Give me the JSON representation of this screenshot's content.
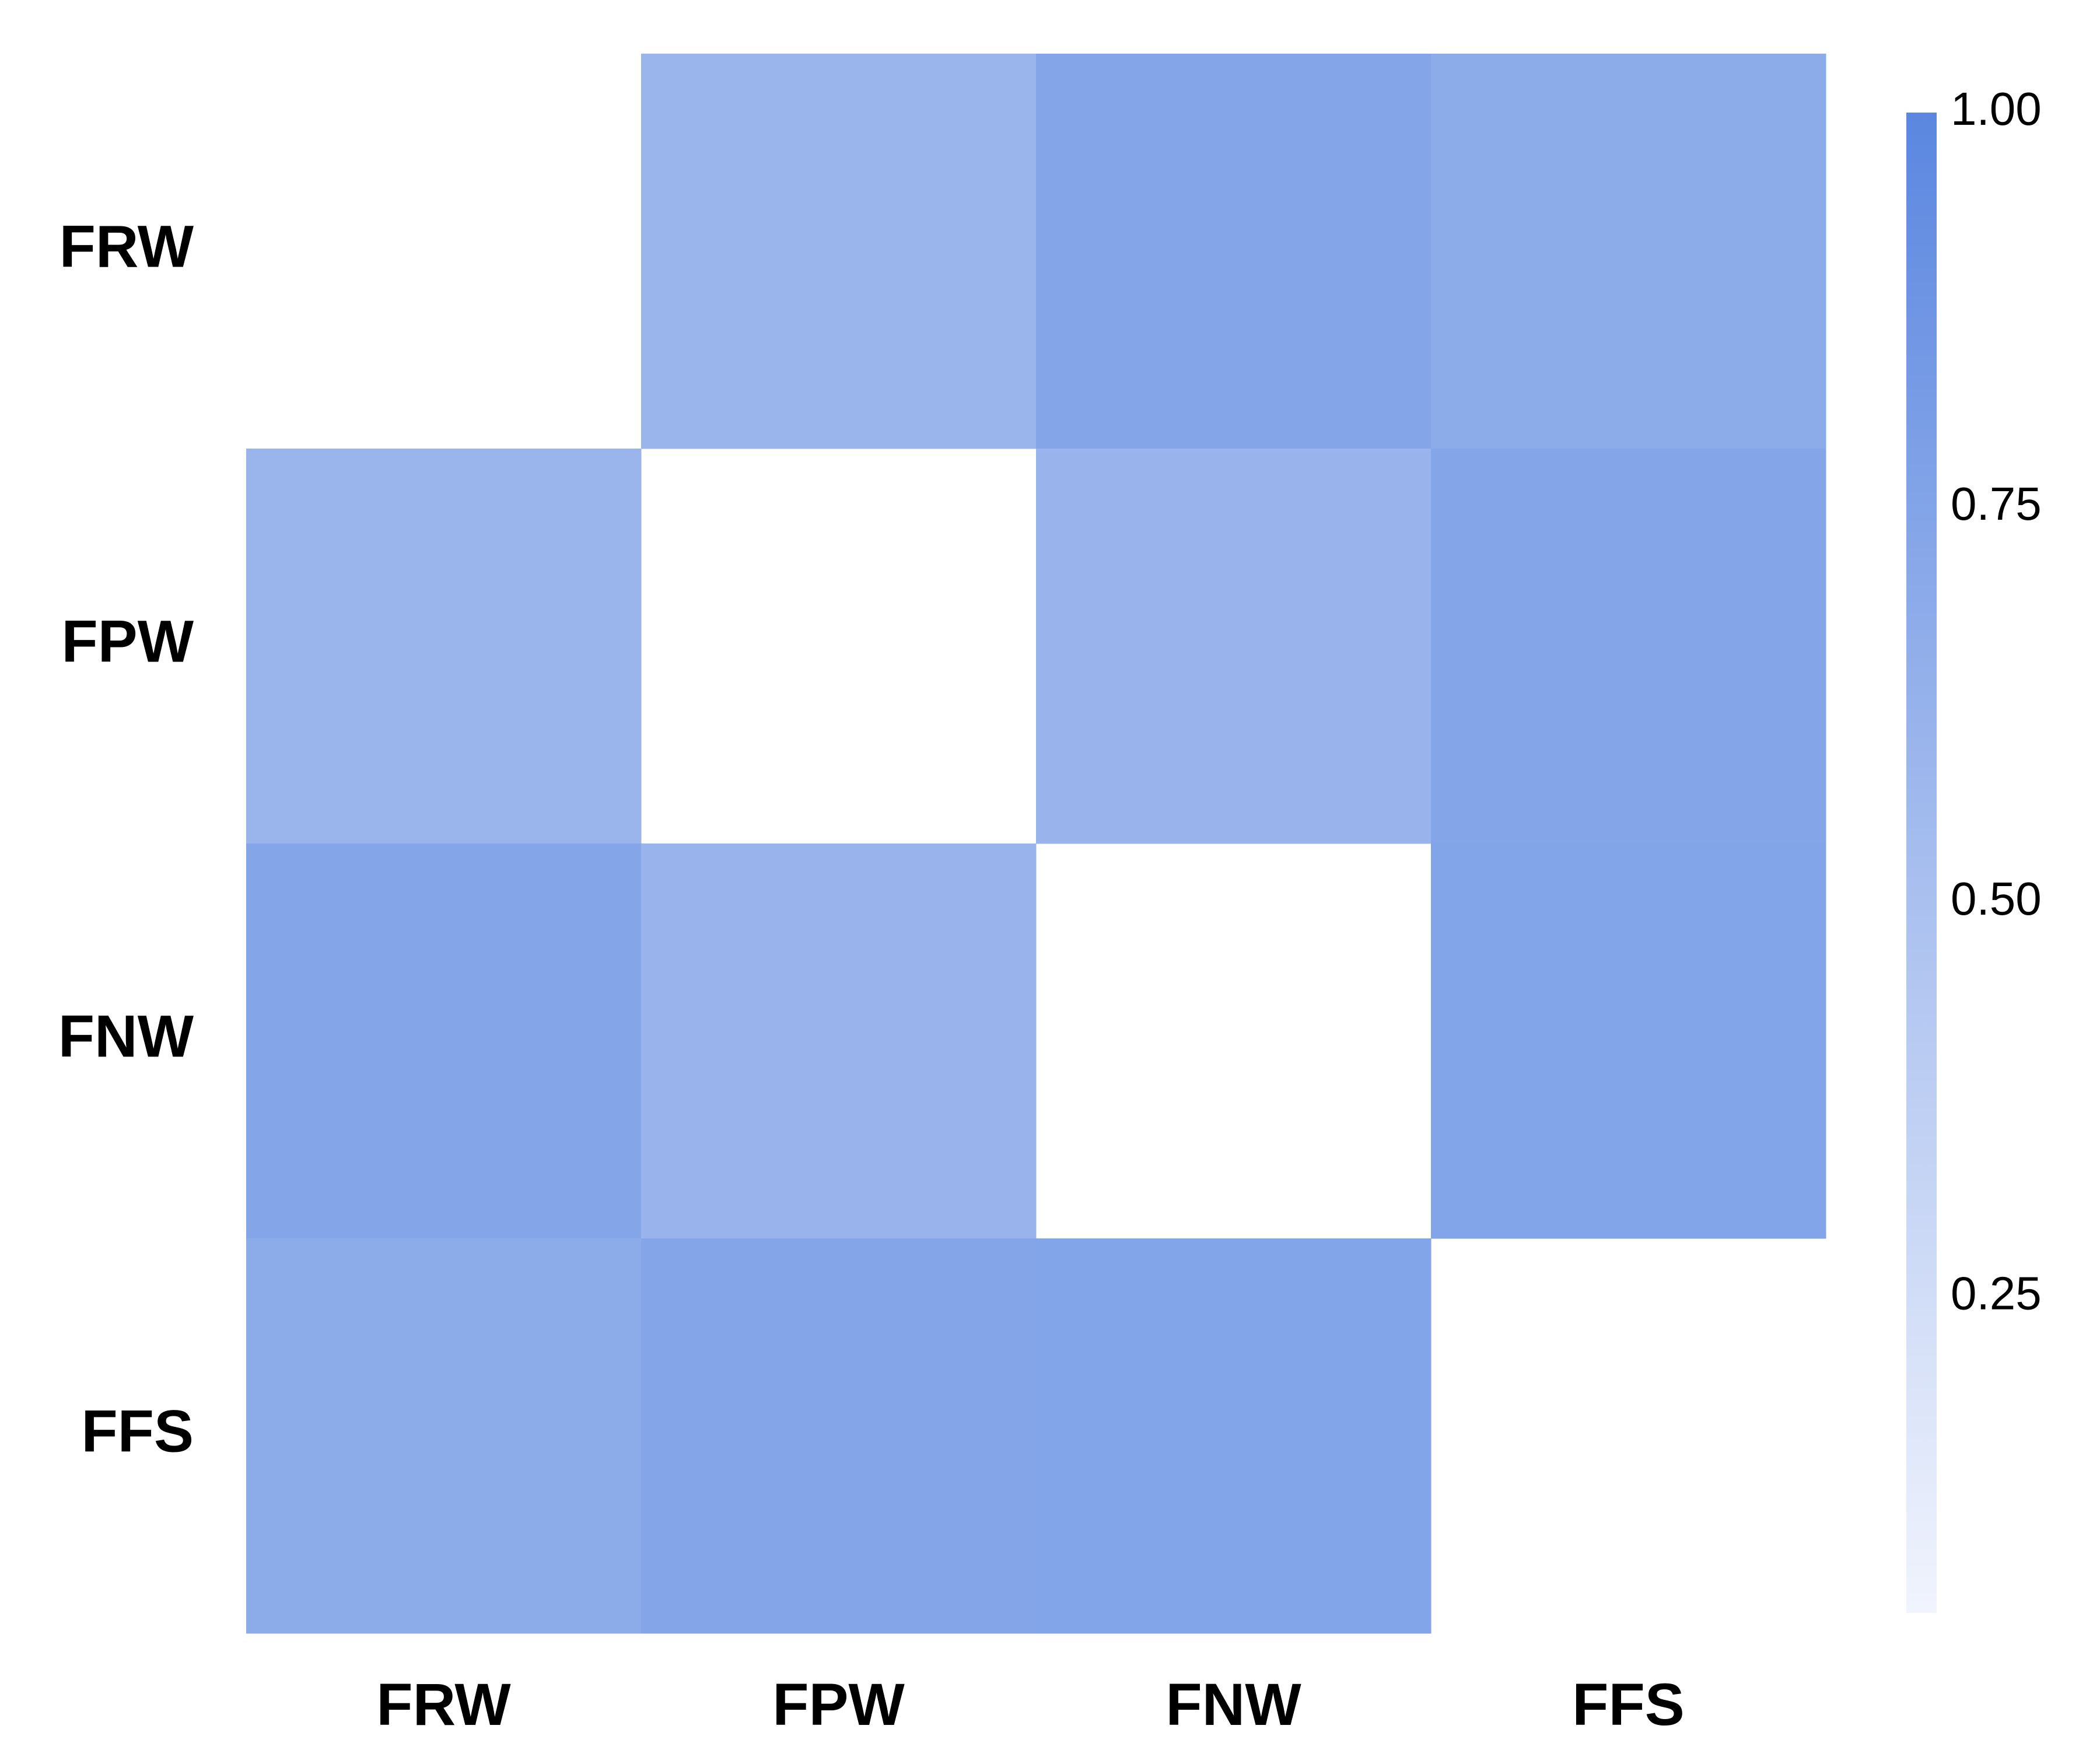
{
  "chart_data": {
    "type": "heatmap",
    "title": "",
    "xlabel": "",
    "ylabel": "",
    "x_categories": [
      "FRW",
      "FPW",
      "FNW",
      "FFS"
    ],
    "y_categories": [
      "FRW",
      "FPW",
      "FNW",
      "FFS"
    ],
    "values": [
      [
        null,
        0.6,
        0.74,
        0.69
      ],
      [
        0.6,
        null,
        0.61,
        0.74
      ],
      [
        0.74,
        0.61,
        null,
        0.75
      ],
      [
        0.69,
        0.74,
        0.75,
        null
      ]
    ],
    "colorbar": {
      "min": 0.05,
      "max": 1.0,
      "ticks": [
        1.0,
        0.75,
        0.5,
        0.25
      ],
      "tick_labels": [
        "1.00",
        "0.75",
        "0.50",
        "0.25"
      ],
      "color_low": "#f1f4fd",
      "color_high": "#5b87e0"
    },
    "diagonal_masked": true,
    "grid": false,
    "legend": "colorbar-right"
  }
}
